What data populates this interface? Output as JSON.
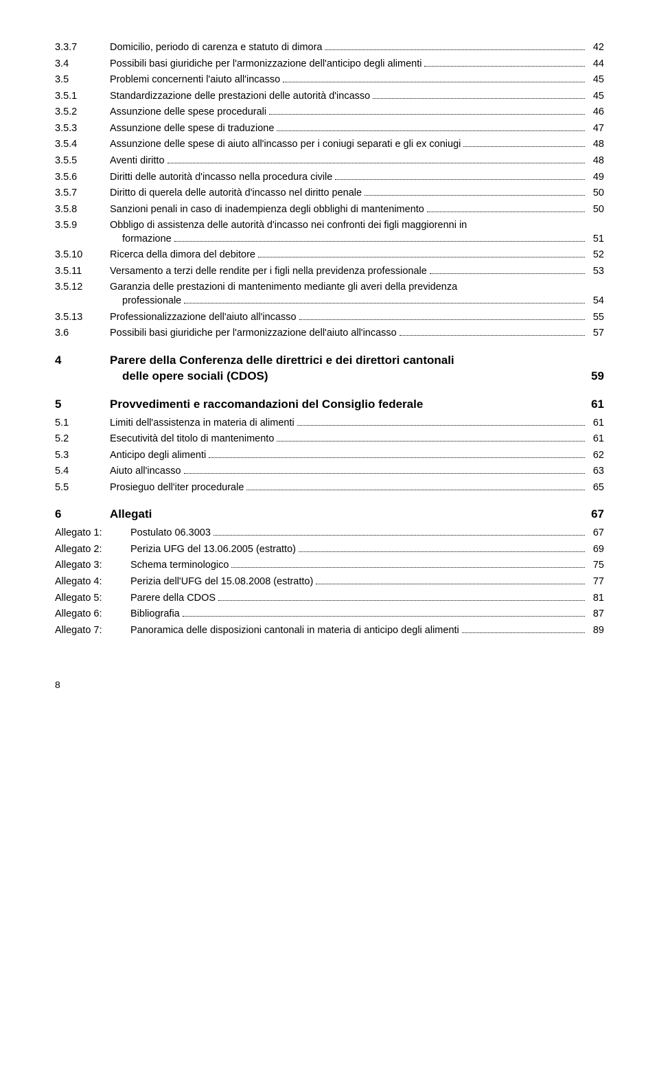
{
  "toc": [
    {
      "lvl": "level-3",
      "num": "3.3.7",
      "label": "Domicilio, periodo di carenza e statuto di dimora",
      "page": "42"
    },
    {
      "lvl": "level-2",
      "num": "3.4",
      "label": "Possibili basi giuridiche per l'armonizzazione dell'anticipo degli alimenti",
      "page": "44"
    },
    {
      "lvl": "level-2",
      "num": "3.5",
      "label": "Problemi concernenti l'aiuto all'incasso",
      "page": "45"
    },
    {
      "lvl": "level-3",
      "num": "3.5.1",
      "label": "Standardizzazione delle prestazioni delle autorità d'incasso",
      "page": "45"
    },
    {
      "lvl": "level-3",
      "num": "3.5.2",
      "label": "Assunzione delle spese procedurali",
      "page": "46"
    },
    {
      "lvl": "level-3",
      "num": "3.5.3",
      "label": "Assunzione delle spese di traduzione",
      "page": "47"
    },
    {
      "lvl": "level-3",
      "num": "3.5.4",
      "label": "Assunzione delle spese di aiuto all'incasso per i coniugi separati e gli ex coniugi",
      "page": "48"
    },
    {
      "lvl": "level-3",
      "num": "3.5.5",
      "label": "Aventi diritto",
      "page": "48"
    },
    {
      "lvl": "level-3",
      "num": "3.5.6",
      "label": "Diritti delle autorità d'incasso nella procedura civile",
      "page": "49"
    },
    {
      "lvl": "level-3",
      "num": "3.5.7",
      "label": "Diritto di querela delle autorità d'incasso nel diritto penale",
      "page": "50"
    },
    {
      "lvl": "level-3",
      "num": "3.5.8",
      "label": "Sanzioni penali in caso di inadempienza degli obblighi di mantenimento",
      "page": "50"
    },
    {
      "lvl": "level-3",
      "num": "3.5.9",
      "label": "Obbligo di assistenza delle autorità d'incasso nei confronti dei figli maggiorenni in",
      "label2": "formazione",
      "page": "51",
      "multiline": true
    },
    {
      "lvl": "level-3",
      "num": "3.5.10",
      "label": "Ricerca della dimora del debitore",
      "page": "52"
    },
    {
      "lvl": "level-3",
      "num": "3.5.11",
      "label": "Versamento a terzi delle rendite per i figli nella previdenza professionale",
      "page": "53"
    },
    {
      "lvl": "level-3",
      "num": "3.5.12",
      "label": "Garanzia delle prestazioni di mantenimento mediante gli averi della previdenza",
      "label2": "professionale",
      "page": "54",
      "multiline": true
    },
    {
      "lvl": "level-3",
      "num": "3.5.13",
      "label": "Professionalizzazione dell'aiuto all'incasso",
      "page": "55"
    },
    {
      "lvl": "level-2",
      "num": "3.6",
      "label": "Possibili basi giuridiche per l'armonizzazione dell'aiuto all'incasso",
      "page": "57"
    },
    {
      "lvl": "level-1",
      "num": "4",
      "label": "Parere della Conferenza delle direttrici e dei direttori cantonali",
      "label2": "delle opere sociali (CDOS)",
      "page": "59",
      "multiline": true,
      "heading": true
    },
    {
      "lvl": "level-1",
      "num": "5",
      "label": "Provvedimenti e raccomandazioni del Consiglio federale",
      "page": "61",
      "heading": true
    },
    {
      "lvl": "level-2",
      "num": "5.1",
      "label": "Limiti dell'assistenza in materia di alimenti",
      "page": "61"
    },
    {
      "lvl": "level-2",
      "num": "5.2",
      "label": "Esecutività del titolo di mantenimento",
      "page": "61"
    },
    {
      "lvl": "level-2",
      "num": "5.3",
      "label": "Anticipo degli alimenti",
      "page": "62"
    },
    {
      "lvl": "level-2",
      "num": "5.4",
      "label": "Aiuto all'incasso",
      "page": "63"
    },
    {
      "lvl": "level-2",
      "num": "5.5",
      "label": "Prosieguo dell'iter procedurale",
      "page": "65"
    },
    {
      "lvl": "level-1",
      "num": "6",
      "label": "Allegati",
      "page": "67",
      "heading": true
    },
    {
      "lvl": "attach",
      "num": "Allegato 1:",
      "label": "Postulato 06.3003",
      "page": "67"
    },
    {
      "lvl": "attach",
      "num": "Allegato 2:",
      "label": "Perizia UFG del 13.06.2005 (estratto)",
      "page": "69"
    },
    {
      "lvl": "attach",
      "num": "Allegato 3:",
      "label": "Schema terminologico",
      "page": "75"
    },
    {
      "lvl": "attach",
      "num": "Allegato 4:",
      "label": "Perizia dell'UFG del 15.08.2008 (estratto)",
      "page": "77"
    },
    {
      "lvl": "attach",
      "num": "Allegato 5:",
      "label": "Parere della CDOS",
      "page": "81"
    },
    {
      "lvl": "attach",
      "num": "Allegato 6:",
      "label": "Bibliografia",
      "page": "87"
    },
    {
      "lvl": "attach",
      "num": "Allegato 7:",
      "label": "Panoramica delle disposizioni cantonali in materia di anticipo degli alimenti",
      "page": "89"
    }
  ],
  "footer_page": "8"
}
